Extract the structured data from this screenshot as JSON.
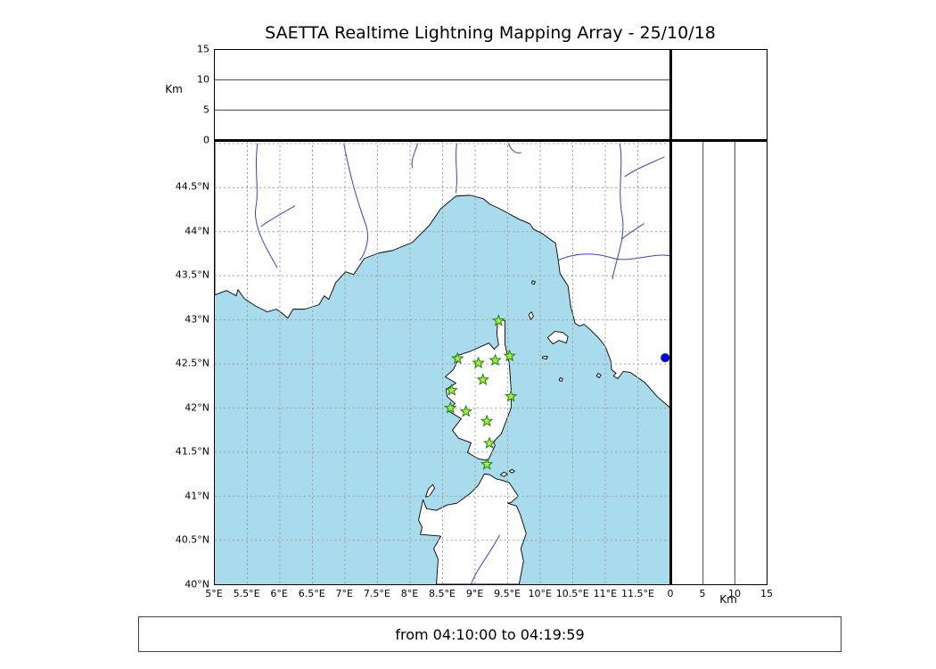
{
  "title": "SAETTA Realtime Lightning Mapping Array - 25/10/18",
  "footer": "from 04:10:00 to 04:19:59",
  "colors": {
    "sea": "#a8dcec",
    "land": "#ffffff",
    "coastline": "#000000",
    "river": "#3344cc",
    "grid": "#999999",
    "station_fill": "#a6f22e",
    "station_edge": "#1e7d1e",
    "source_dot": "#0000cc"
  },
  "axes": {
    "altitude_left": {
      "label": "Km",
      "ticks": [
        0,
        5,
        10,
        15
      ],
      "max": 15,
      "gridlines": [
        5,
        10
      ]
    },
    "km_bottom_right": {
      "label": "Km",
      "ticks": [
        0,
        5,
        10,
        15
      ],
      "max": 15,
      "gridlines": [
        5,
        10
      ]
    },
    "longitude": {
      "min": 5,
      "max": 12,
      "grid_step": 0.5,
      "tick_values": [
        5,
        5.5,
        6,
        6.5,
        7,
        7.5,
        8,
        8.5,
        9,
        9.5,
        10,
        10.5,
        11,
        11.5
      ],
      "tick_labels": [
        "5°E",
        "5.5°E",
        "6°E",
        "6.5°E",
        "7°E",
        "7.5°E",
        "8°E",
        "8.5°E",
        "9°E",
        "9.5°E",
        "10°E",
        "10.5°E",
        "11°E",
        "11.5°E"
      ]
    },
    "latitude": {
      "min": 40,
      "max": 45.03,
      "grid_step": 0.5,
      "tick_values": [
        44.5,
        44,
        43.5,
        43,
        42.5,
        42,
        41.5,
        41,
        40.5,
        40
      ],
      "tick_labels": [
        "44.5°N",
        "44°N",
        "43.5°N",
        "43°N",
        "42.5°N",
        "42°N",
        "41.5°N",
        "41°N",
        "40.5°N",
        "40°N"
      ]
    }
  },
  "chart_data": {
    "type": "scatter",
    "title": "SAETTA Realtime Lightning Mapping Array - 25/10/18",
    "time_window": "from 04:10:00 to 04:19:59",
    "layout": "LMA 4-panel display: altitude vs longitude (top), plan-view map of Corsica region (center), altitude vs latitude (right), altitude histogram (top-right, empty)",
    "map_extent": {
      "lon_min": 5,
      "lon_max": 12,
      "lat_min": 40,
      "lat_max": 45.03
    },
    "altitude_km_range": [
      0,
      15
    ],
    "grid": "dashed, 0.5 degree spacing",
    "stations": [
      {
        "lon": 9.36,
        "lat": 42.99
      },
      {
        "lon": 8.73,
        "lat": 42.56
      },
      {
        "lon": 9.05,
        "lat": 42.51
      },
      {
        "lon": 9.31,
        "lat": 42.54
      },
      {
        "lon": 9.53,
        "lat": 42.59
      },
      {
        "lon": 9.12,
        "lat": 42.32
      },
      {
        "lon": 8.64,
        "lat": 42.2
      },
      {
        "lon": 9.55,
        "lat": 42.13
      },
      {
        "lon": 8.62,
        "lat": 42.0
      },
      {
        "lon": 8.86,
        "lat": 41.96
      },
      {
        "lon": 9.18,
        "lat": 41.85
      },
      {
        "lon": 9.22,
        "lat": 41.6
      },
      {
        "lon": 9.18,
        "lat": 41.36
      }
    ],
    "sources": [
      {
        "lon": 11.92,
        "lat": 42.57
      }
    ]
  }
}
